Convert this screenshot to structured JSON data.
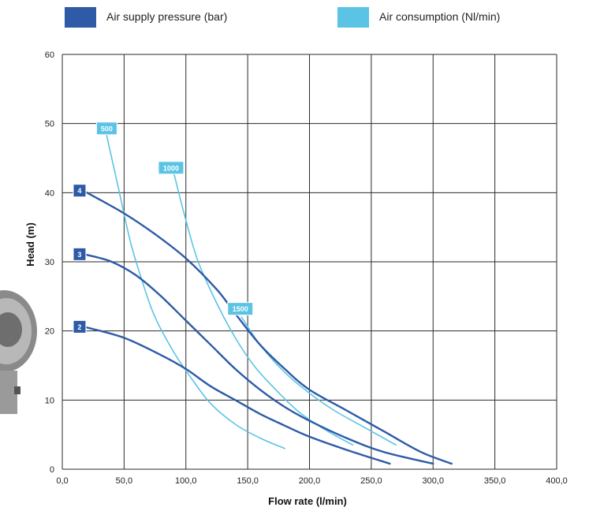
{
  "chart_data": {
    "type": "line",
    "title": "",
    "xlabel": "Flow rate (l/min)",
    "ylabel": "Head (m)",
    "xlim": [
      0,
      400
    ],
    "ylim": [
      0,
      60
    ],
    "x_ticks": [
      "0,0",
      "50,0",
      "100,0",
      "150,0",
      "200,0",
      "250,0",
      "300,0",
      "350,0",
      "400,0"
    ],
    "y_ticks": [
      "0",
      "10",
      "20",
      "30",
      "40",
      "50",
      "60"
    ],
    "grid": true,
    "legend_placement": "top",
    "legend": [
      {
        "label": "Air supply pressure (bar)",
        "color": "#2e5aa7"
      },
      {
        "label": "Air consumption (Nl/min)",
        "color": "#5bc4e4"
      }
    ],
    "series": [
      {
        "group": "pressure",
        "name": "4",
        "color": "#2e5aa7",
        "points": [
          [
            20,
            40
          ],
          [
            50,
            37
          ],
          [
            75,
            34
          ],
          [
            100,
            30.5
          ],
          [
            125,
            26
          ],
          [
            140,
            22.5
          ],
          [
            160,
            18
          ],
          [
            180,
            14.5
          ],
          [
            200,
            11.5
          ],
          [
            230,
            8.5
          ],
          [
            260,
            5.5
          ],
          [
            290,
            2.5
          ],
          [
            315,
            0.8
          ]
        ]
      },
      {
        "group": "pressure",
        "name": "3",
        "color": "#2e5aa7",
        "points": [
          [
            20,
            31
          ],
          [
            40,
            30
          ],
          [
            60,
            28
          ],
          [
            80,
            25
          ],
          [
            100,
            21.5
          ],
          [
            120,
            18
          ],
          [
            140,
            14.5
          ],
          [
            160,
            11.5
          ],
          [
            180,
            9
          ],
          [
            200,
            7
          ],
          [
            230,
            4.5
          ],
          [
            260,
            2.5
          ],
          [
            300,
            0.8
          ]
        ]
      },
      {
        "group": "pressure",
        "name": "2",
        "color": "#2e5aa7",
        "points": [
          [
            20,
            20.5
          ],
          [
            50,
            19
          ],
          [
            80,
            16.5
          ],
          [
            100,
            14.5
          ],
          [
            120,
            12
          ],
          [
            140,
            10
          ],
          [
            160,
            8
          ],
          [
            180,
            6.3
          ],
          [
            200,
            4.7
          ],
          [
            230,
            2.8
          ],
          [
            265,
            0.8
          ]
        ]
      },
      {
        "group": "consumption",
        "name": "500",
        "color": "#5bc4e4",
        "points": [
          [
            35,
            49
          ],
          [
            45,
            41
          ],
          [
            55,
            33
          ],
          [
            65,
            27
          ],
          [
            75,
            22
          ],
          [
            90,
            17
          ],
          [
            105,
            13
          ],
          [
            120,
            9.5
          ],
          [
            140,
            6.5
          ],
          [
            160,
            4.5
          ],
          [
            180,
            3
          ]
        ]
      },
      {
        "group": "consumption",
        "name": "1000",
        "color": "#5bc4e4",
        "points": [
          [
            90,
            43
          ],
          [
            100,
            36
          ],
          [
            110,
            30
          ],
          [
            125,
            24
          ],
          [
            140,
            19
          ],
          [
            155,
            15
          ],
          [
            170,
            12
          ],
          [
            190,
            8.5
          ],
          [
            210,
            6
          ],
          [
            235,
            3.5
          ]
        ]
      },
      {
        "group": "consumption",
        "name": "1500",
        "color": "#5bc4e4",
        "points": [
          [
            145,
            22
          ],
          [
            160,
            18
          ],
          [
            180,
            14
          ],
          [
            200,
            11
          ],
          [
            220,
            8.5
          ],
          [
            245,
            6
          ],
          [
            270,
            3.5
          ]
        ]
      }
    ],
    "badges": [
      {
        "text": "4",
        "x": 14,
        "y": 40.3,
        "color": "#2e5aa7"
      },
      {
        "text": "3",
        "x": 14,
        "y": 31.1,
        "color": "#2e5aa7"
      },
      {
        "text": "2",
        "x": 14,
        "y": 20.6,
        "color": "#2e5aa7"
      },
      {
        "text": "500",
        "x": 36,
        "y": 49.3,
        "color": "#5bc4e4"
      },
      {
        "text": "1000",
        "x": 88,
        "y": 43.6,
        "color": "#5bc4e4"
      },
      {
        "text": "1500",
        "x": 144,
        "y": 23.2,
        "color": "#5bc4e4"
      }
    ]
  }
}
